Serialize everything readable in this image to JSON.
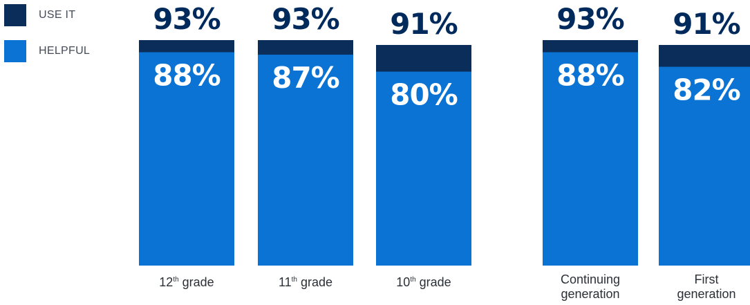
{
  "legend": [
    {
      "label": "USE IT",
      "color": "#0b2d5a"
    },
    {
      "label": "HELPFUL",
      "color": "#0a73d4"
    }
  ],
  "chart_data": {
    "type": "bar",
    "stacked_overlay": true,
    "ylim": [
      0,
      100
    ],
    "categories": [
      "12th grade",
      "11th grade",
      "10th grade",
      "Continuing generation",
      "First generation"
    ],
    "series": [
      {
        "name": "USE IT",
        "color": "#0b2d5a",
        "values": [
          93,
          93,
          91,
          93,
          91
        ],
        "labels": [
          "93%",
          "93%",
          "91%",
          "93%",
          "91%"
        ]
      },
      {
        "name": "HELPFUL",
        "color": "#0a73d4",
        "values": [
          88,
          87,
          80,
          88,
          82
        ],
        "labels": [
          "88%",
          "87%",
          "80%",
          "88%",
          "82%"
        ]
      }
    ]
  },
  "categories_display": [
    {
      "base": "12",
      "sup": "th",
      "rest": " grade"
    },
    {
      "base": "11",
      "sup": "th",
      "rest": " grade"
    },
    {
      "base": "10",
      "sup": "th",
      "rest": " grade"
    },
    {
      "line1": "Continuing",
      "line2": "generation"
    },
    {
      "line1": "First",
      "line2": "generation"
    }
  ]
}
